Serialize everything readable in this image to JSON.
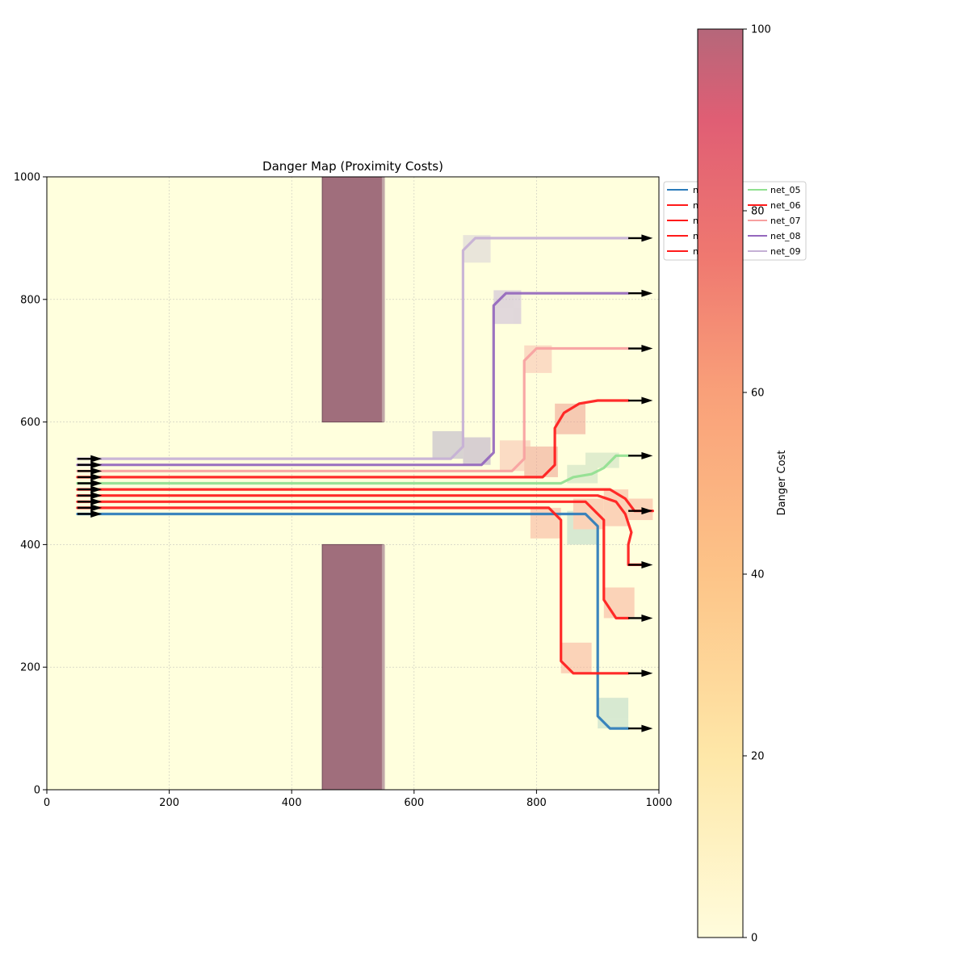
{
  "chart_data": {
    "type": "line",
    "title": "Danger Map (Proximity Costs)",
    "xlabel": "",
    "ylabel": "",
    "xlim": [
      0,
      1000
    ],
    "ylim": [
      0,
      1000
    ],
    "x_ticks": [
      0,
      200,
      400,
      600,
      800,
      1000
    ],
    "y_ticks": [
      0,
      200,
      400,
      600,
      800,
      1000
    ],
    "grid": true,
    "legend_placement": "upper-right, outside plot (partially covered by colorbar)",
    "background_color": "#ffffdd",
    "obstacles": [
      {
        "x0": 450,
        "x1": 550,
        "y0": 600,
        "y1": 1000,
        "color": "#a06e7c"
      },
      {
        "x0": 450,
        "x1": 550,
        "y0": 0,
        "y1": 400,
        "color": "#a06e7c"
      }
    ],
    "colorbar": {
      "label": "Danger Cost",
      "range": [
        0,
        100
      ],
      "ticks": [
        0,
        20,
        40,
        60,
        80,
        100
      ],
      "colors": [
        "#fffcdc",
        "#fee7a8",
        "#fdc488",
        "#f9a079",
        "#ef7870",
        "#e05e74",
        "#b5677a"
      ]
    },
    "legend": {
      "left_column": [
        {
          "label": "n",
          "color": "#2b7bba"
        },
        {
          "label": "n",
          "color": "#ff1a1a"
        },
        {
          "label": "n",
          "color": "#ff1a1a"
        },
        {
          "label": "n",
          "color": "#ff1a1a"
        },
        {
          "label": "n",
          "color": "#ff1a1a"
        }
      ],
      "right_column": [
        {
          "label": "net_05",
          "color": "#90e090"
        },
        {
          "label": "net_06",
          "color": "#ff1a1a"
        },
        {
          "label": "net_07",
          "color": "#f7a0a0"
        },
        {
          "label": "net_08",
          "color": "#9467bd"
        },
        {
          "label": "net_09",
          "color": "#c5b0d5"
        }
      ]
    },
    "series": [
      {
        "color": "#2b7bba",
        "points": [
          [
            50,
            450
          ],
          [
            880,
            450
          ],
          [
            900,
            430
          ],
          [
            900,
            120
          ],
          [
            920,
            100
          ],
          [
            950,
            100
          ]
        ]
      },
      {
        "color": "#ff1a1a",
        "points": [
          [
            50,
            460
          ],
          [
            820,
            460
          ],
          [
            840,
            440
          ],
          [
            840,
            210
          ],
          [
            860,
            190
          ],
          [
            950,
            190
          ]
        ]
      },
      {
        "color": "#ff1a1a",
        "points": [
          [
            50,
            470
          ],
          [
            880,
            470
          ],
          [
            910,
            440
          ],
          [
            910,
            310
          ],
          [
            930,
            280
          ],
          [
            950,
            280
          ]
        ]
      },
      {
        "color": "#ff1a1a",
        "points": [
          [
            50,
            480
          ],
          [
            900,
            480
          ],
          [
            930,
            470
          ],
          [
            945,
            450
          ],
          [
            955,
            420
          ],
          [
            950,
            400
          ],
          [
            950,
            367
          ],
          [
            980,
            367
          ]
        ]
      },
      {
        "color": "#ff1a1a",
        "points": [
          [
            50,
            490
          ],
          [
            920,
            490
          ],
          [
            945,
            475
          ],
          [
            960,
            455
          ],
          [
            990,
            455
          ]
        ]
      },
      {
        "name": "net_05",
        "color": "#90e090",
        "points": [
          [
            50,
            500
          ],
          [
            840,
            500
          ],
          [
            860,
            510
          ],
          [
            890,
            515
          ],
          [
            910,
            525
          ],
          [
            930,
            545
          ],
          [
            950,
            545
          ]
        ]
      },
      {
        "name": "net_06",
        "color": "#ff1a1a",
        "points": [
          [
            50,
            510
          ],
          [
            810,
            510
          ],
          [
            830,
            530
          ],
          [
            830,
            590
          ],
          [
            845,
            615
          ],
          [
            870,
            630
          ],
          [
            900,
            635
          ],
          [
            950,
            635
          ]
        ]
      },
      {
        "name": "net_07",
        "color": "#f7a0a0",
        "points": [
          [
            50,
            520
          ],
          [
            760,
            520
          ],
          [
            780,
            540
          ],
          [
            780,
            700
          ],
          [
            800,
            720
          ],
          [
            950,
            720
          ]
        ]
      },
      {
        "name": "net_08",
        "color": "#9467bd",
        "points": [
          [
            50,
            530
          ],
          [
            710,
            530
          ],
          [
            730,
            550
          ],
          [
            730,
            790
          ],
          [
            750,
            810
          ],
          [
            950,
            810
          ]
        ]
      },
      {
        "name": "net_09",
        "color": "#c5b0d5",
        "points": [
          [
            50,
            540
          ],
          [
            660,
            540
          ],
          [
            680,
            560
          ],
          [
            680,
            880
          ],
          [
            700,
            900
          ],
          [
            950,
            900
          ]
        ]
      }
    ],
    "danger_zones": [
      {
        "x0": 630,
        "x1": 680,
        "y0": 540,
        "y1": 585,
        "color": "#b8b0c8"
      },
      {
        "x0": 680,
        "x1": 725,
        "y0": 530,
        "y1": 575,
        "color": "#b8a8c8"
      },
      {
        "x0": 740,
        "x1": 790,
        "y0": 520,
        "y1": 570,
        "color": "#f9c0b0"
      },
      {
        "x0": 780,
        "x1": 835,
        "y0": 510,
        "y1": 560,
        "color": "#f0a090"
      },
      {
        "x0": 830,
        "x1": 880,
        "y0": 580,
        "y1": 630,
        "color": "#f0a090"
      },
      {
        "x0": 850,
        "x1": 900,
        "y0": 500,
        "y1": 530,
        "color": "#c8e0c0"
      },
      {
        "x0": 880,
        "x1": 935,
        "y0": 525,
        "y1": 550,
        "color": "#c8e0c0"
      },
      {
        "x0": 680,
        "x1": 725,
        "y0": 860,
        "y1": 905,
        "color": "#d8d0d8"
      },
      {
        "x0": 730,
        "x1": 775,
        "y0": 760,
        "y1": 815,
        "color": "#c8b8d8"
      },
      {
        "x0": 780,
        "x1": 825,
        "y0": 680,
        "y1": 725,
        "color": "#f9c0b0"
      },
      {
        "x0": 790,
        "x1": 840,
        "y0": 410,
        "y1": 460,
        "color": "#f9b09a"
      },
      {
        "x0": 850,
        "x1": 900,
        "y0": 400,
        "y1": 455,
        "color": "#b8d8c8"
      },
      {
        "x0": 860,
        "x1": 910,
        "y0": 425,
        "y1": 475,
        "color": "#f9b09a"
      },
      {
        "x0": 910,
        "x1": 950,
        "y0": 430,
        "y1": 490,
        "color": "#f9b09a"
      },
      {
        "x0": 950,
        "x1": 990,
        "y0": 440,
        "y1": 475,
        "color": "#f9b09a"
      },
      {
        "x0": 910,
        "x1": 960,
        "y0": 280,
        "y1": 330,
        "color": "#f9b09a"
      },
      {
        "x0": 840,
        "x1": 890,
        "y0": 190,
        "y1": 240,
        "color": "#f9b09a"
      },
      {
        "x0": 900,
        "x1": 950,
        "y0": 100,
        "y1": 150,
        "color": "#b8d8c8"
      }
    ],
    "source_arrows_y": [
      450,
      460,
      470,
      480,
      490,
      500,
      510,
      520,
      530,
      540
    ],
    "target_arrows_y": [
      100,
      190,
      280,
      367,
      455,
      545,
      635,
      720,
      810,
      900
    ]
  }
}
